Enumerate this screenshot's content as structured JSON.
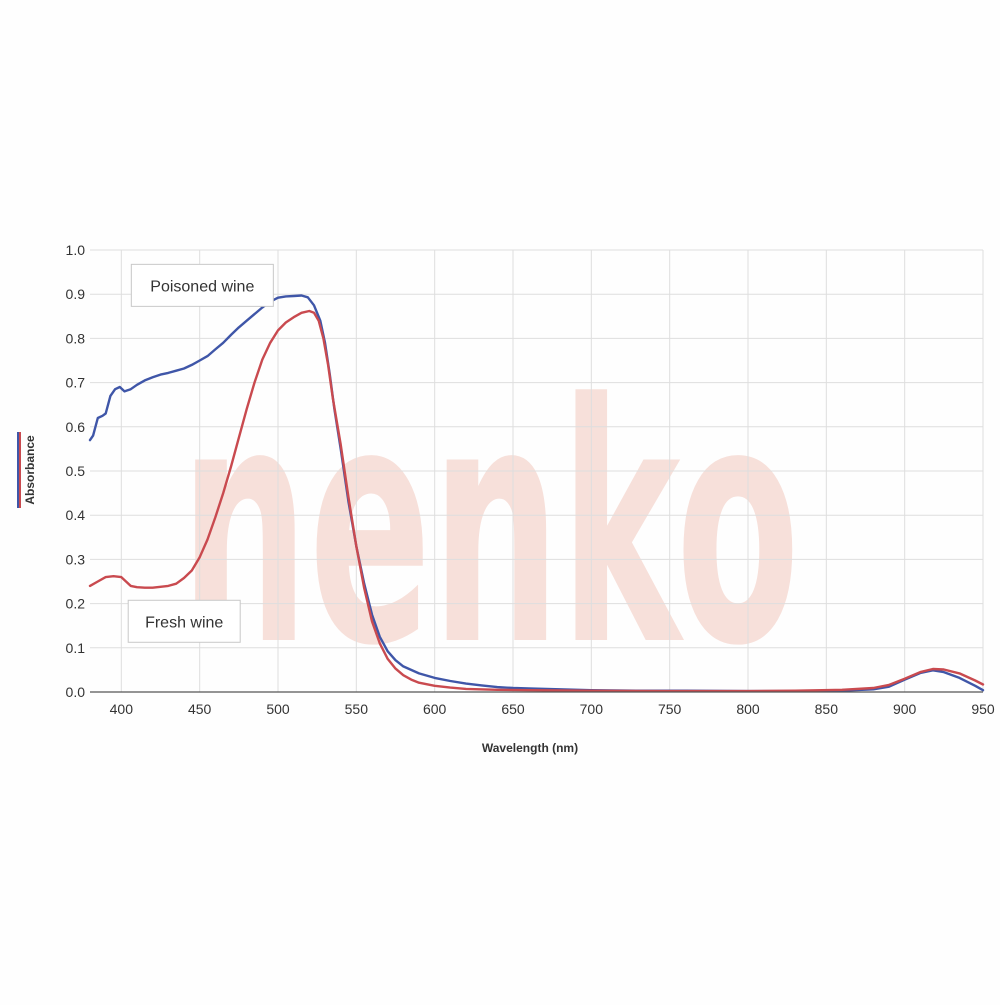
{
  "chart_data": {
    "type": "line",
    "title": "",
    "xlabel": "Wavelength (nm)",
    "ylabel": "Absorbance",
    "xlim": [
      380,
      950
    ],
    "ylim": [
      0,
      1.0
    ],
    "x_ticks": [
      400,
      450,
      500,
      550,
      600,
      650,
      700,
      750,
      800,
      850,
      900,
      950
    ],
    "y_ticks": [
      0.0,
      0.1,
      0.2,
      0.3,
      0.4,
      0.5,
      0.6,
      0.7,
      0.8,
      0.9,
      1.0
    ],
    "y_tick_decimals": 1,
    "grid": true,
    "legend": "none",
    "watermark": "nenko",
    "colors": {
      "poisoned": "#3f56a8",
      "fresh": "#c94a4f",
      "watermark": "#f7e0da"
    },
    "annotations": [
      {
        "text": "Poisoned wine",
        "series": "Poisoned wine",
        "x": 400,
        "y": 0.92,
        "box_w": 142
      },
      {
        "text": "Fresh wine",
        "series": "Fresh wine",
        "x": 398,
        "y": 0.16,
        "box_w": 112
      }
    ],
    "series": [
      {
        "name": "Poisoned wine",
        "color": "#3f56a8",
        "points": [
          [
            380,
            0.57
          ],
          [
            382,
            0.58
          ],
          [
            385,
            0.62
          ],
          [
            388,
            0.625
          ],
          [
            390,
            0.63
          ],
          [
            393,
            0.67
          ],
          [
            396,
            0.685
          ],
          [
            399,
            0.69
          ],
          [
            402,
            0.68
          ],
          [
            406,
            0.685
          ],
          [
            410,
            0.695
          ],
          [
            415,
            0.705
          ],
          [
            420,
            0.712
          ],
          [
            425,
            0.718
          ],
          [
            430,
            0.722
          ],
          [
            435,
            0.727
          ],
          [
            440,
            0.732
          ],
          [
            445,
            0.74
          ],
          [
            450,
            0.75
          ],
          [
            455,
            0.76
          ],
          [
            460,
            0.775
          ],
          [
            465,
            0.79
          ],
          [
            470,
            0.808
          ],
          [
            475,
            0.825
          ],
          [
            480,
            0.84
          ],
          [
            485,
            0.855
          ],
          [
            490,
            0.87
          ],
          [
            495,
            0.883
          ],
          [
            500,
            0.892
          ],
          [
            505,
            0.895
          ],
          [
            510,
            0.896
          ],
          [
            515,
            0.897
          ],
          [
            519,
            0.893
          ],
          [
            523,
            0.875
          ],
          [
            527,
            0.84
          ],
          [
            530,
            0.79
          ],
          [
            533,
            0.72
          ],
          [
            536,
            0.64
          ],
          [
            540,
            0.55
          ],
          [
            545,
            0.43
          ],
          [
            550,
            0.33
          ],
          [
            555,
            0.245
          ],
          [
            560,
            0.175
          ],
          [
            565,
            0.125
          ],
          [
            570,
            0.092
          ],
          [
            575,
            0.072
          ],
          [
            580,
            0.058
          ],
          [
            590,
            0.042
          ],
          [
            600,
            0.032
          ],
          [
            610,
            0.025
          ],
          [
            620,
            0.019
          ],
          [
            630,
            0.015
          ],
          [
            640,
            0.011
          ],
          [
            650,
            0.009
          ],
          [
            660,
            0.008
          ],
          [
            680,
            0.006
          ],
          [
            700,
            0.004
          ],
          [
            730,
            0.003
          ],
          [
            760,
            0.003
          ],
          [
            800,
            0.002
          ],
          [
            830,
            0.002
          ],
          [
            860,
            0.003
          ],
          [
            880,
            0.006
          ],
          [
            890,
            0.012
          ],
          [
            900,
            0.028
          ],
          [
            910,
            0.043
          ],
          [
            918,
            0.049
          ],
          [
            925,
            0.045
          ],
          [
            935,
            0.032
          ],
          [
            945,
            0.014
          ],
          [
            950,
            0.004
          ]
        ]
      },
      {
        "name": "Fresh wine",
        "color": "#c94a4f",
        "points": [
          [
            380,
            0.24
          ],
          [
            385,
            0.25
          ],
          [
            390,
            0.26
          ],
          [
            395,
            0.262
          ],
          [
            400,
            0.26
          ],
          [
            403,
            0.25
          ],
          [
            406,
            0.24
          ],
          [
            410,
            0.237
          ],
          [
            415,
            0.236
          ],
          [
            420,
            0.236
          ],
          [
            425,
            0.238
          ],
          [
            430,
            0.24
          ],
          [
            435,
            0.245
          ],
          [
            440,
            0.258
          ],
          [
            445,
            0.275
          ],
          [
            450,
            0.305
          ],
          [
            455,
            0.345
          ],
          [
            460,
            0.395
          ],
          [
            465,
            0.45
          ],
          [
            470,
            0.51
          ],
          [
            475,
            0.575
          ],
          [
            480,
            0.64
          ],
          [
            485,
            0.7
          ],
          [
            490,
            0.752
          ],
          [
            495,
            0.79
          ],
          [
            500,
            0.818
          ],
          [
            505,
            0.836
          ],
          [
            510,
            0.848
          ],
          [
            515,
            0.858
          ],
          [
            520,
            0.862
          ],
          [
            523,
            0.858
          ],
          [
            526,
            0.84
          ],
          [
            529,
            0.8
          ],
          [
            532,
            0.74
          ],
          [
            535,
            0.665
          ],
          [
            540,
            0.56
          ],
          [
            545,
            0.44
          ],
          [
            550,
            0.33
          ],
          [
            555,
            0.235
          ],
          [
            560,
            0.16
          ],
          [
            565,
            0.11
          ],
          [
            570,
            0.075
          ],
          [
            575,
            0.053
          ],
          [
            580,
            0.038
          ],
          [
            585,
            0.028
          ],
          [
            590,
            0.021
          ],
          [
            600,
            0.014
          ],
          [
            610,
            0.01
          ],
          [
            620,
            0.007
          ],
          [
            640,
            0.005
          ],
          [
            660,
            0.004
          ],
          [
            700,
            0.003
          ],
          [
            750,
            0.002
          ],
          [
            800,
            0.002
          ],
          [
            830,
            0.003
          ],
          [
            860,
            0.005
          ],
          [
            880,
            0.009
          ],
          [
            890,
            0.016
          ],
          [
            900,
            0.03
          ],
          [
            910,
            0.045
          ],
          [
            918,
            0.052
          ],
          [
            925,
            0.051
          ],
          [
            935,
            0.042
          ],
          [
            945,
            0.026
          ],
          [
            950,
            0.017
          ]
        ]
      }
    ]
  }
}
